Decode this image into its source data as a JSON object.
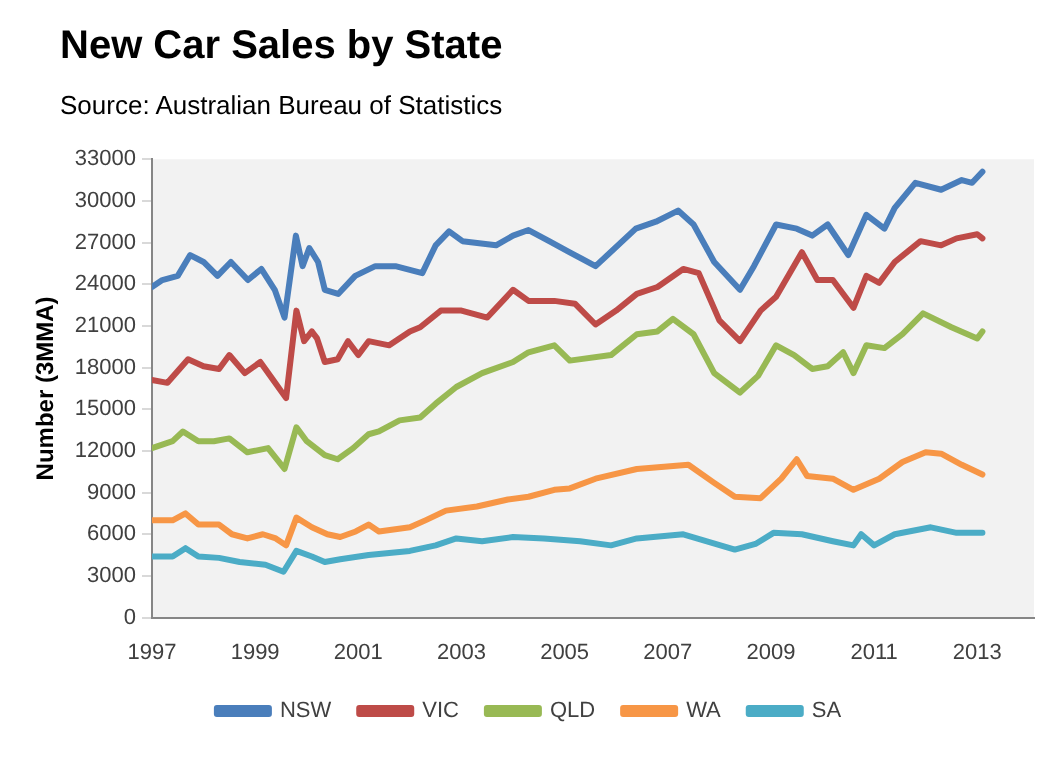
{
  "chart_data": {
    "type": "line",
    "title": "New Car Sales by State",
    "subtitle": "Source: Australian Bureau of Statistics",
    "ylabel": "Number (3MMA)",
    "xlim": [
      1997,
      2014.1
    ],
    "xticks": [
      1997,
      1999,
      2001,
      2003,
      2005,
      2007,
      2009,
      2011,
      2013
    ],
    "ylim": [
      0,
      33000
    ],
    "yticks": [
      0,
      3000,
      6000,
      9000,
      12000,
      15000,
      18000,
      21000,
      24000,
      27000,
      30000,
      33000
    ],
    "grid": false,
    "legend": "bottom",
    "marker": "none",
    "line_style": "solid",
    "series": [
      {
        "name": "NSW",
        "color": "#4a7ebb",
        "x": [
          1997.0,
          1997.2,
          1997.5,
          1997.74,
          1998.0,
          1998.27,
          1998.53,
          1998.86,
          1999.12,
          1999.38,
          1999.57,
          1999.79,
          1999.92,
          2000.05,
          2000.22,
          2000.35,
          2000.61,
          2000.94,
          2001.33,
          2001.72,
          2002.24,
          2002.5,
          2002.76,
          2003.02,
          2003.67,
          2004.0,
          2004.3,
          2004.7,
          2005.1,
          2005.6,
          2006.38,
          2006.77,
          2007.2,
          2007.5,
          2007.9,
          2008.4,
          2008.67,
          2009.1,
          2009.5,
          2009.8,
          2010.1,
          2010.5,
          2010.85,
          2011.2,
          2011.4,
          2011.8,
          2012.3,
          2012.7,
          2012.9,
          2013.1
        ],
        "values": [
          23800,
          24300,
          24600,
          26100,
          25600,
          24600,
          25600,
          24300,
          25100,
          23600,
          21600,
          27500,
          25300,
          26600,
          25600,
          23600,
          23300,
          24600,
          25300,
          25300,
          24800,
          26800,
          27800,
          27100,
          26800,
          27500,
          27900,
          27100,
          26300,
          25300,
          28000,
          28500,
          29300,
          28300,
          25600,
          23600,
          25300,
          28300,
          28000,
          27500,
          28300,
          26100,
          29000,
          28000,
          29500,
          31300,
          30800,
          31500,
          31300,
          32100
        ]
      },
      {
        "name": "VIC",
        "color": "#be4b48",
        "x": [
          1997.0,
          1997.3,
          1997.7,
          1998.0,
          1998.3,
          1998.5,
          1998.8,
          1999.1,
          1999.35,
          1999.6,
          1999.8,
          1999.95,
          2000.1,
          2000.2,
          2000.35,
          2000.6,
          2000.8,
          2001.0,
          2001.2,
          2001.6,
          2002.0,
          2002.2,
          2002.6,
          2003.0,
          2003.5,
          2004.0,
          2004.3,
          2004.8,
          2005.2,
          2005.6,
          2006.0,
          2006.4,
          2006.8,
          2007.3,
          2007.6,
          2008.0,
          2008.4,
          2008.8,
          2009.1,
          2009.6,
          2009.9,
          2010.2,
          2010.6,
          2010.85,
          2011.1,
          2011.4,
          2011.9,
          2012.3,
          2012.6,
          2013.0,
          2013.1
        ],
        "values": [
          17100,
          16900,
          18600,
          18100,
          17900,
          18900,
          17600,
          18400,
          17100,
          15800,
          22100,
          19900,
          20600,
          20100,
          18400,
          18600,
          19900,
          18900,
          19900,
          19600,
          20600,
          20900,
          22100,
          22100,
          21600,
          23600,
          22800,
          22800,
          22600,
          21100,
          22100,
          23300,
          23800,
          25100,
          24800,
          21400,
          19900,
          22100,
          23100,
          26300,
          24300,
          24300,
          22300,
          24600,
          24100,
          25600,
          27100,
          26800,
          27300,
          27600,
          27300
        ]
      },
      {
        "name": "QLD",
        "color": "#98b954",
        "x": [
          1997.0,
          1997.4,
          1997.6,
          1997.9,
          1998.2,
          1998.5,
          1998.85,
          1999.25,
          1999.57,
          1999.8,
          2000.0,
          2000.35,
          2000.6,
          2000.9,
          2001.2,
          2001.4,
          2001.8,
          2002.2,
          2002.5,
          2002.9,
          2003.4,
          2004.0,
          2004.3,
          2004.8,
          2005.1,
          2005.9,
          2006.4,
          2006.8,
          2007.1,
          2007.5,
          2007.9,
          2008.4,
          2008.75,
          2009.1,
          2009.45,
          2009.8,
          2010.1,
          2010.4,
          2010.6,
          2010.85,
          2011.2,
          2011.55,
          2011.95,
          2012.5,
          2013.0,
          2013.1
        ],
        "values": [
          12200,
          12700,
          13400,
          12700,
          12700,
          12900,
          11900,
          12200,
          10700,
          13700,
          12700,
          11700,
          11400,
          12200,
          13200,
          13400,
          14200,
          14400,
          15400,
          16600,
          17600,
          18400,
          19100,
          19600,
          18500,
          18900,
          20400,
          20600,
          21500,
          20400,
          17600,
          16200,
          17400,
          19600,
          18900,
          17900,
          18100,
          19100,
          17600,
          19600,
          19400,
          20400,
          21900,
          20900,
          20100,
          20600
        ]
      },
      {
        "name": "WA",
        "color": "#f79646",
        "x": [
          1997.0,
          1997.4,
          1997.65,
          1997.9,
          1998.3,
          1998.55,
          1998.85,
          1999.15,
          1999.4,
          1999.6,
          1999.8,
          2000.1,
          2000.4,
          2000.65,
          2000.95,
          2001.2,
          2001.4,
          2002.0,
          2002.3,
          2002.7,
          2003.3,
          2003.9,
          2004.3,
          2004.8,
          2005.1,
          2005.6,
          2006.4,
          2007.4,
          2007.9,
          2008.3,
          2008.8,
          2009.2,
          2009.5,
          2009.7,
          2010.2,
          2010.6,
          2011.1,
          2011.55,
          2012.0,
          2012.3,
          2012.7,
          2013.1
        ],
        "values": [
          7000,
          7000,
          7500,
          6700,
          6700,
          6000,
          5700,
          6000,
          5700,
          5200,
          7200,
          6500,
          6000,
          5800,
          6200,
          6700,
          6200,
          6500,
          7000,
          7700,
          8000,
          8500,
          8700,
          9200,
          9300,
          10000,
          10700,
          11000,
          9700,
          8700,
          8600,
          10000,
          11400,
          10200,
          10000,
          9200,
          10000,
          11200,
          11900,
          11800,
          11000,
          10300
        ]
      },
      {
        "name": "SA",
        "color": "#4bacc6",
        "x": [
          1997.0,
          1997.4,
          1997.65,
          1997.9,
          1998.3,
          1998.7,
          1999.2,
          1999.55,
          1999.8,
          2000.1,
          2000.35,
          2000.65,
          2001.2,
          2002.0,
          2002.5,
          2002.9,
          2003.4,
          2004.0,
          2004.6,
          2005.3,
          2005.9,
          2006.4,
          2007.3,
          2008.3,
          2008.7,
          2009.05,
          2009.6,
          2010.2,
          2010.6,
          2010.75,
          2011.0,
          2011.4,
          2012.1,
          2012.6,
          2013.1
        ],
        "values": [
          4400,
          4400,
          5000,
          4400,
          4300,
          4000,
          3800,
          3300,
          4800,
          4400,
          4000,
          4200,
          4500,
          4800,
          5200,
          5700,
          5500,
          5800,
          5700,
          5500,
          5200,
          5700,
          6000,
          4900,
          5300,
          6100,
          6000,
          5500,
          5200,
          6000,
          5200,
          6000,
          6500,
          6100,
          6100
        ]
      }
    ]
  }
}
